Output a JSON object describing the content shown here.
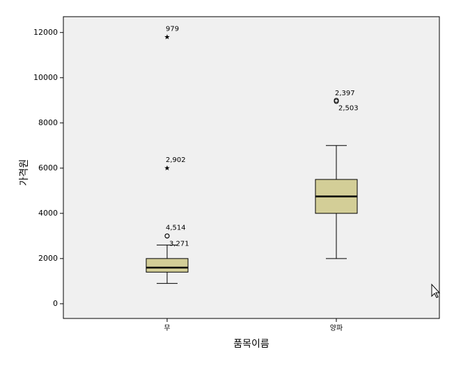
{
  "chart_data": {
    "type": "boxplot",
    "x_label": "품목이름",
    "y_label": "가격원",
    "categories": [
      "무",
      "양파"
    ],
    "boxes": [
      {
        "whislo": 900,
        "q1": 1400,
        "med": 1600,
        "q3": 2000,
        "whishi": 2600,
        "outliers": [
          {
            "value": 3000,
            "label": "4,514",
            "marker": "circle"
          },
          {
            "value": 3000,
            "label": "3,271",
            "marker": "circle"
          },
          {
            "value": 6000,
            "label": "2,902",
            "marker": "star"
          },
          {
            "value": 11800,
            "label": "979",
            "marker": "star"
          }
        ]
      },
      {
        "whislo": 2000,
        "q1": 4000,
        "med": 4750,
        "q3": 5500,
        "whishi": 7000,
        "outliers": [
          {
            "value": 8950,
            "label": "2,397",
            "marker": "circle"
          },
          {
            "value": 9000,
            "label": "2,503",
            "marker": "circle"
          }
        ]
      }
    ],
    "color": "#d3ce97",
    "ylim": [
      -650,
      12700
    ],
    "yticks": [
      0,
      2000,
      4000,
      6000,
      8000,
      10000,
      12000
    ]
  }
}
